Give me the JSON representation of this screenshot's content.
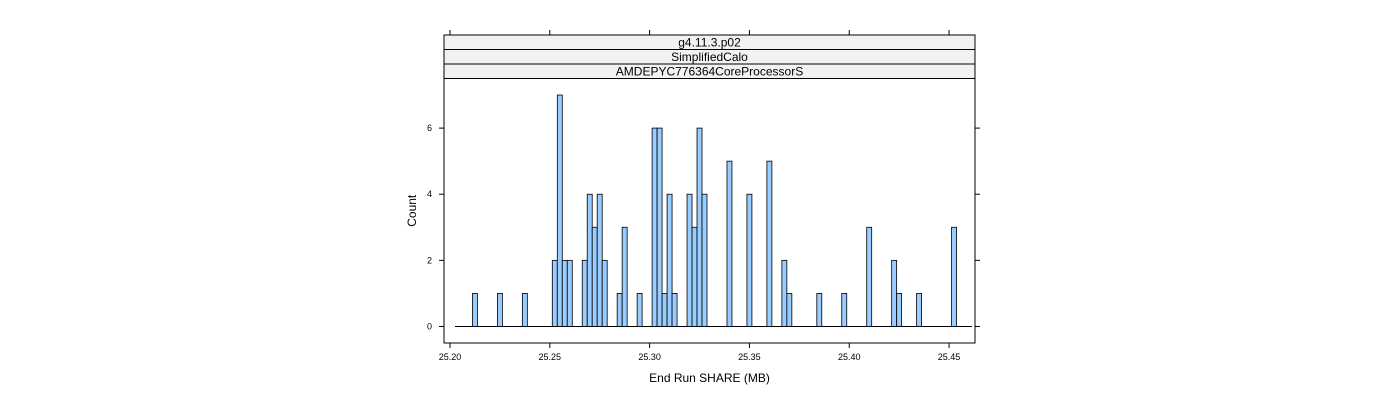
{
  "chart_data": {
    "type": "bar",
    "title": "",
    "strips": [
      "g4.11.3.p02",
      "SimplifiedCalo",
      "AMDEPYC776364CoreProcessorS"
    ],
    "xlabel": "End Run SHARE (MB)",
    "ylabel": "Count",
    "xlim": [
      25.197,
      25.463
    ],
    "ylim": [
      -0.5,
      7.5
    ],
    "x_ticks": [
      25.2,
      25.25,
      25.3,
      25.35,
      25.4,
      25.45
    ],
    "x_tick_labels": [
      "25.20",
      "25.25",
      "25.30",
      "25.35",
      "25.40",
      "25.45"
    ],
    "y_ticks": [
      0,
      2,
      4,
      6
    ],
    "y_tick_labels": [
      "0",
      "2",
      "4",
      "6"
    ],
    "x_range": [
      25.2025,
      25.4615
    ],
    "bin_width": 0.0025,
    "bars": [
      {
        "x": 25.2125,
        "count": 1
      },
      {
        "x": 25.225,
        "count": 1
      },
      {
        "x": 25.2375,
        "count": 1
      },
      {
        "x": 25.2525,
        "count": 2
      },
      {
        "x": 25.255,
        "count": 7
      },
      {
        "x": 25.2575,
        "count": 2
      },
      {
        "x": 25.26,
        "count": 2
      },
      {
        "x": 25.2675,
        "count": 2
      },
      {
        "x": 25.27,
        "count": 4
      },
      {
        "x": 25.2725,
        "count": 3
      },
      {
        "x": 25.275,
        "count": 4
      },
      {
        "x": 25.2775,
        "count": 2
      },
      {
        "x": 25.285,
        "count": 1
      },
      {
        "x": 25.2875,
        "count": 3
      },
      {
        "x": 25.295,
        "count": 1
      },
      {
        "x": 25.3025,
        "count": 6
      },
      {
        "x": 25.305,
        "count": 6
      },
      {
        "x": 25.3075,
        "count": 1
      },
      {
        "x": 25.31,
        "count": 4
      },
      {
        "x": 25.3125,
        "count": 1
      },
      {
        "x": 25.32,
        "count": 4
      },
      {
        "x": 25.3225,
        "count": 3
      },
      {
        "x": 25.325,
        "count": 6
      },
      {
        "x": 25.3275,
        "count": 4
      },
      {
        "x": 25.34,
        "count": 5
      },
      {
        "x": 25.35,
        "count": 4
      },
      {
        "x": 25.36,
        "count": 5
      },
      {
        "x": 25.3675,
        "count": 2
      },
      {
        "x": 25.37,
        "count": 1
      },
      {
        "x": 25.385,
        "count": 1
      },
      {
        "x": 25.3975,
        "count": 1
      },
      {
        "x": 25.41,
        "count": 3
      },
      {
        "x": 25.4225,
        "count": 2
      },
      {
        "x": 25.425,
        "count": 1
      },
      {
        "x": 25.435,
        "count": 1
      },
      {
        "x": 25.4525,
        "count": 3
      }
    ],
    "grid": false,
    "legend": "none"
  },
  "colors": {
    "bar_fill": "#99ccff",
    "bar_stroke": "#000000",
    "strip_fill": "#f2f2f2",
    "frame": "#000000"
  }
}
